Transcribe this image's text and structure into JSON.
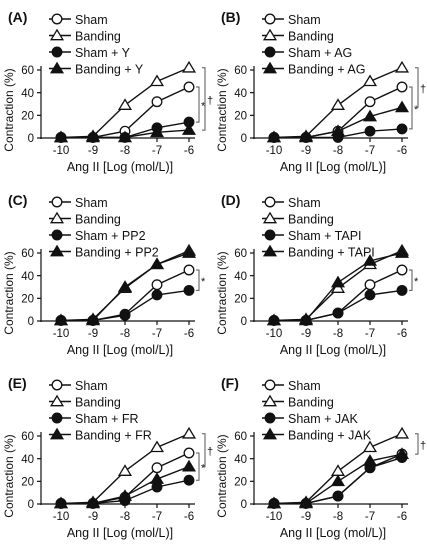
{
  "chart_data": [
    {
      "type": "line",
      "panel_label": "(A)",
      "x": [
        -10,
        -9,
        -8,
        -7,
        -6
      ],
      "xticks": [
        "-10",
        "-9",
        "-8",
        "-7",
        "-6"
      ],
      "xlabel": "Ang II [Log (mol/L)]",
      "ylabel": "Contraction (%)",
      "ylim": [
        0,
        60
      ],
      "yticks": [
        "0",
        "20",
        "40",
        "60"
      ],
      "legend_position": "top-left",
      "series": [
        {
          "name": "Sham",
          "marker": "circle-open",
          "values": [
            0.5,
            0.5,
            6,
            32,
            45
          ]
        },
        {
          "name": "Banding",
          "marker": "triangle-open",
          "values": [
            0.5,
            1.5,
            29,
            50,
            62
          ]
        },
        {
          "name": "Sham + Y",
          "marker": "circle-filled",
          "values": [
            0.5,
            0.5,
            0.5,
            9,
            14
          ]
        },
        {
          "name": "Banding + Y",
          "marker": "triangle-filled",
          "values": [
            0.5,
            0.5,
            0.5,
            5,
            7
          ]
        }
      ],
      "significance": [
        {
          "symbol": "*",
          "from": 0,
          "to": 2
        },
        {
          "symbol": "†",
          "from": 1,
          "to": 3
        }
      ]
    },
    {
      "type": "line",
      "panel_label": "(B)",
      "x": [
        -10,
        -9,
        -8,
        -7,
        -6
      ],
      "xticks": [
        "-10",
        "-9",
        "-8",
        "-7",
        "-6"
      ],
      "xlabel": "Ang II [Log (mol/L)]",
      "ylabel": "Contraction (%)",
      "ylim": [
        0,
        60
      ],
      "yticks": [
        "0",
        "20",
        "40",
        "60"
      ],
      "legend_position": "top-left",
      "series": [
        {
          "name": "Sham",
          "marker": "circle-open",
          "values": [
            0.5,
            0.5,
            6,
            32,
            45
          ]
        },
        {
          "name": "Banding",
          "marker": "triangle-open",
          "values": [
            0.5,
            1.5,
            29,
            50,
            62
          ]
        },
        {
          "name": "Sham + AG",
          "marker": "circle-filled",
          "values": [
            0.5,
            0.5,
            0.5,
            6,
            8
          ]
        },
        {
          "name": "Banding + AG",
          "marker": "triangle-filled",
          "values": [
            0.5,
            0.5,
            6,
            19,
            27
          ]
        }
      ],
      "significance": [
        {
          "symbol": "*",
          "from": 0,
          "to": 2
        },
        {
          "symbol": "†",
          "from": 1,
          "to": 3
        }
      ]
    },
    {
      "type": "line",
      "panel_label": "(C)",
      "x": [
        -10,
        -9,
        -8,
        -7,
        -6
      ],
      "xticks": [
        "-10",
        "-9",
        "-8",
        "-7",
        "-6"
      ],
      "xlabel": "Ang II [Log (mol/L)]",
      "ylabel": "Contraction (%)",
      "ylim": [
        0,
        60
      ],
      "yticks": [
        "0",
        "20",
        "40",
        "60"
      ],
      "legend_position": "top-left",
      "series": [
        {
          "name": "Sham",
          "marker": "circle-open",
          "values": [
            0.5,
            0.5,
            6,
            32,
            45
          ]
        },
        {
          "name": "Banding",
          "marker": "triangle-open",
          "values": [
            0.5,
            1.5,
            29,
            50,
            62
          ]
        },
        {
          "name": "Sham + PP2",
          "marker": "circle-filled",
          "values": [
            0.5,
            0.5,
            5,
            23,
            27
          ]
        },
        {
          "name": "Banding + PP2",
          "marker": "triangle-filled",
          "values": [
            0.5,
            0.5,
            30,
            50,
            60
          ]
        }
      ],
      "significance": [
        {
          "symbol": "*",
          "from": 0,
          "to": 2
        }
      ]
    },
    {
      "type": "line",
      "panel_label": "(D)",
      "x": [
        -10,
        -9,
        -8,
        -7,
        -6
      ],
      "xticks": [
        "-10",
        "-9",
        "-8",
        "-7",
        "-6"
      ],
      "xlabel": "Ang II [Log (mol/L)]",
      "ylabel": "Contraction (%)",
      "ylim": [
        0,
        60
      ],
      "yticks": [
        "0",
        "20",
        "40",
        "60"
      ],
      "legend_position": "top-left",
      "series": [
        {
          "name": "Sham",
          "marker": "circle-open",
          "values": [
            0.5,
            0.5,
            7,
            32,
            45
          ]
        },
        {
          "name": "Banding",
          "marker": "triangle-open",
          "values": [
            0.5,
            1.5,
            29,
            50,
            62
          ]
        },
        {
          "name": "Sham + TAPI",
          "marker": "circle-filled",
          "values": [
            0.5,
            0.5,
            7,
            23,
            27
          ]
        },
        {
          "name": "Banding + TAPI",
          "marker": "triangle-filled",
          "values": [
            0.5,
            0.5,
            34,
            53,
            60
          ]
        }
      ],
      "significance": [
        {
          "symbol": "*",
          "from": 0,
          "to": 2
        }
      ]
    },
    {
      "type": "line",
      "panel_label": "(E)",
      "x": [
        -10,
        -9,
        -8,
        -7,
        -6
      ],
      "xticks": [
        "-10",
        "-9",
        "-8",
        "-7",
        "-6"
      ],
      "xlabel": "Ang II [Log (mol/L)]",
      "ylabel": "Contraction (%)",
      "ylim": [
        0,
        60
      ],
      "yticks": [
        "0",
        "20",
        "40",
        "60"
      ],
      "legend_position": "top-left",
      "series": [
        {
          "name": "Sham",
          "marker": "circle-open",
          "values": [
            0.5,
            0.5,
            6,
            32,
            45
          ]
        },
        {
          "name": "Banding",
          "marker": "triangle-open",
          "values": [
            0.5,
            1.5,
            29,
            50,
            62
          ]
        },
        {
          "name": "Sham + FR",
          "marker": "circle-filled",
          "values": [
            0.5,
            0.5,
            3,
            15,
            21
          ]
        },
        {
          "name": "Banding + FR",
          "marker": "triangle-filled",
          "values": [
            0.5,
            0.5,
            7,
            22,
            33
          ]
        }
      ],
      "significance": [
        {
          "symbol": "*",
          "from": 0,
          "to": 2
        },
        {
          "symbol": "†",
          "from": 1,
          "to": 3
        }
      ]
    },
    {
      "type": "line",
      "panel_label": "(F)",
      "x": [
        -10,
        -9,
        -8,
        -7,
        -6
      ],
      "xticks": [
        "-10",
        "-9",
        "-8",
        "-7",
        "-6"
      ],
      "xlabel": "Ang II [Log (mol/L)]",
      "ylabel": "Contraction (%)",
      "ylim": [
        0,
        60
      ],
      "yticks": [
        "0",
        "20",
        "40",
        "60"
      ],
      "legend_position": "top-left",
      "series": [
        {
          "name": "Sham",
          "marker": "circle-open",
          "values": [
            0.5,
            0.5,
            7,
            32,
            44
          ]
        },
        {
          "name": "Banding",
          "marker": "triangle-open",
          "values": [
            0.5,
            1.5,
            29,
            50,
            62
          ]
        },
        {
          "name": "Sham + JAK",
          "marker": "circle-filled",
          "values": [
            0.5,
            0.5,
            7,
            32,
            41
          ]
        },
        {
          "name": "Banding + JAK",
          "marker": "triangle-filled",
          "values": [
            0.5,
            0.5,
            20,
            38,
            44
          ]
        }
      ],
      "significance": [
        {
          "symbol": "†",
          "from": 1,
          "to": 3
        }
      ]
    }
  ]
}
